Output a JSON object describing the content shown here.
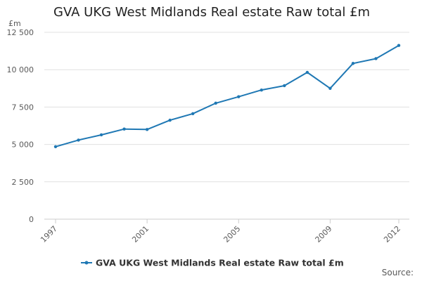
{
  "chart_data": {
    "type": "line",
    "title": "GVA UKG West Midlands Real estate Raw total £m",
    "ylabel": "£m",
    "xlabel": "",
    "x": [
      1997,
      1998,
      1999,
      2000,
      2001,
      2002,
      2003,
      2004,
      2005,
      2006,
      2007,
      2008,
      2009,
      2010,
      2011,
      2012
    ],
    "x_tick_labels": [
      "1997",
      "2001",
      "2005",
      "2009",
      "2012"
    ],
    "x_tick_values": [
      1997,
      2001,
      2005,
      2009,
      2012
    ],
    "y_tick_labels": [
      "0",
      "2 500",
      "5 000",
      "7 500",
      "10 000",
      "12 500"
    ],
    "y_tick_values": [
      0,
      2500,
      5000,
      7500,
      10000,
      12500
    ],
    "ylim": [
      0,
      12500
    ],
    "xlim": [
      1997,
      2012
    ],
    "grid": true,
    "legend_position": "bottom",
    "series": [
      {
        "name": "GVA UKG West Midlands Real estate Raw total £m",
        "color": "#1f78b4",
        "values": [
          4850,
          5290,
          5640,
          6030,
          6000,
          6620,
          7060,
          7760,
          8190,
          8640,
          8930,
          9820,
          8750,
          10420,
          10740,
          11620
        ]
      }
    ]
  },
  "source_label": "Source:"
}
